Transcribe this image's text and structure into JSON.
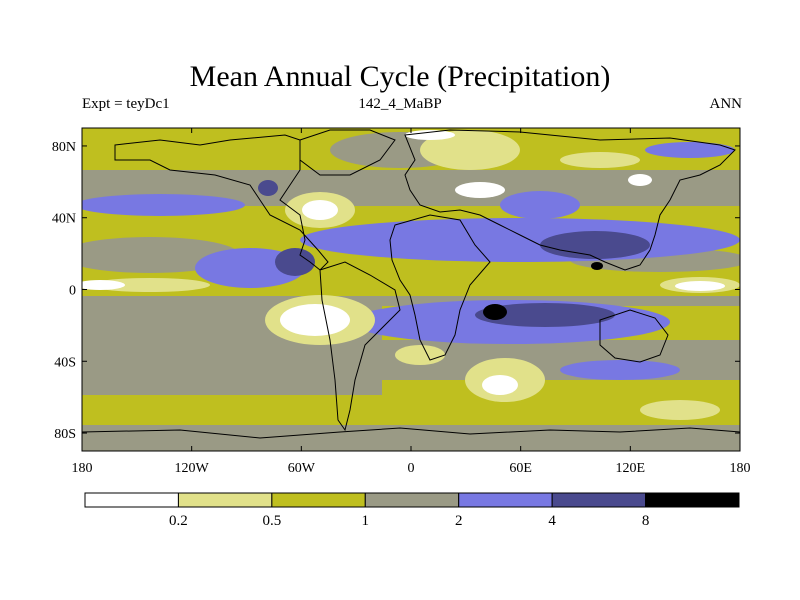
{
  "title": "Mean Annual Cycle (Precipitation)",
  "subtitle_left": "Expt = teyDc1",
  "subtitle_center": "142_4_MaBP",
  "subtitle_right": "ANN",
  "lat_labels": [
    "80N",
    "40N",
    "0",
    "40S",
    "80S"
  ],
  "lon_labels": [
    "180",
    "120W",
    "60W",
    "0",
    "60E",
    "120E",
    "180"
  ],
  "colorbar": {
    "colors": [
      "#ffffff",
      "#e1e18a",
      "#bfbf1f",
      "#9a9a85",
      "#7878e2",
      "#4a4a8e",
      "#000000"
    ],
    "labels": [
      "0.2",
      "0.5",
      "1",
      "2",
      "4",
      "8"
    ]
  },
  "chart_data": {
    "type": "filled-contour-map",
    "title": "Mean Annual Cycle (Precipitation)",
    "variable": "Precipitation",
    "projection": "cylindrical equidistant",
    "lon_range": [
      -180,
      180
    ],
    "lat_range": [
      -90,
      90
    ],
    "levels": [
      0.2,
      0.5,
      1,
      2,
      4,
      8
    ],
    "xticks": [
      "180",
      "120W",
      "60W",
      "0",
      "60E",
      "120E",
      "180"
    ],
    "yticks": [
      "80N",
      "40N",
      "0",
      "40S",
      "80S"
    ],
    "annotations": {
      "left": "Expt = teyDc1",
      "center": "142_4_MaBP",
      "right": "ANN"
    }
  }
}
